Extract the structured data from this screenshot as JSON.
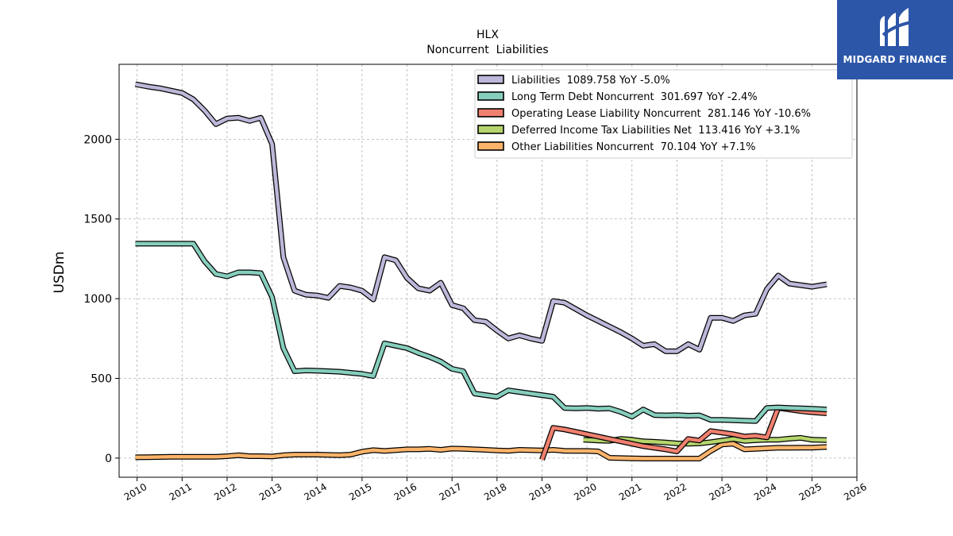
{
  "logo": {
    "text": "MIDGARD FINANCE",
    "background": "#2c56a8"
  },
  "chart_data": {
    "type": "line",
    "title": "HLX",
    "subtitle": "Noncurrent  Liabilities",
    "ylabel": "USDm",
    "xlabel": "",
    "xlim": [
      2009.6,
      2026.0
    ],
    "ylim": [
      -120,
      2470
    ],
    "xticks": [
      2010,
      2011,
      2012,
      2013,
      2014,
      2015,
      2016,
      2017,
      2018,
      2019,
      2020,
      2021,
      2022,
      2023,
      2024,
      2025,
      2026
    ],
    "yticks": [
      0,
      500,
      1000,
      1500,
      2000
    ],
    "grid": true,
    "legend_position": "top-right",
    "series": [
      {
        "name": "Liabilities  1089.758 YoY -5.0%",
        "color": "#bcb8d9",
        "points": [
          [
            2009.96,
            2345
          ],
          [
            2010.25,
            2330
          ],
          [
            2010.5,
            2320
          ],
          [
            2010.75,
            2305
          ],
          [
            2011.0,
            2290
          ],
          [
            2011.25,
            2250
          ],
          [
            2011.5,
            2180
          ],
          [
            2011.75,
            2095
          ],
          [
            2012.0,
            2130
          ],
          [
            2012.25,
            2135
          ],
          [
            2012.5,
            2115
          ],
          [
            2012.75,
            2135
          ],
          [
            2013.0,
            1970
          ],
          [
            2013.25,
            1260
          ],
          [
            2013.5,
            1050
          ],
          [
            2013.75,
            1025
          ],
          [
            2014.0,
            1020
          ],
          [
            2014.25,
            1005
          ],
          [
            2014.5,
            1080
          ],
          [
            2014.75,
            1070
          ],
          [
            2015.0,
            1050
          ],
          [
            2015.25,
            995
          ],
          [
            2015.5,
            1260
          ],
          [
            2015.75,
            1240
          ],
          [
            2016.0,
            1130
          ],
          [
            2016.25,
            1065
          ],
          [
            2016.5,
            1050
          ],
          [
            2016.75,
            1100
          ],
          [
            2017.0,
            960
          ],
          [
            2017.25,
            940
          ],
          [
            2017.5,
            865
          ],
          [
            2017.75,
            855
          ],
          [
            2018.0,
            800
          ],
          [
            2018.25,
            750
          ],
          [
            2018.5,
            770
          ],
          [
            2018.75,
            750
          ],
          [
            2019.0,
            735
          ],
          [
            2019.25,
            985
          ],
          [
            2019.5,
            975
          ],
          [
            2019.75,
            935
          ],
          [
            2020.0,
            895
          ],
          [
            2020.25,
            860
          ],
          [
            2020.5,
            825
          ],
          [
            2020.75,
            790
          ],
          [
            2021.0,
            750
          ],
          [
            2021.25,
            705
          ],
          [
            2021.5,
            715
          ],
          [
            2021.75,
            670
          ],
          [
            2022.0,
            670
          ],
          [
            2022.25,
            715
          ],
          [
            2022.5,
            680
          ],
          [
            2022.75,
            880
          ],
          [
            2023.0,
            880
          ],
          [
            2023.25,
            860
          ],
          [
            2023.5,
            895
          ],
          [
            2023.75,
            905
          ],
          [
            2024.0,
            1060
          ],
          [
            2024.25,
            1145
          ],
          [
            2024.5,
            1095
          ],
          [
            2024.75,
            1085
          ],
          [
            2025.0,
            1075
          ],
          [
            2025.33,
            1090
          ]
        ]
      },
      {
        "name": "Long Term Debt Noncurrent  301.697 YoY -2.4%",
        "color": "#86cebd",
        "points": [
          [
            2009.96,
            1345
          ],
          [
            2010.25,
            1345
          ],
          [
            2010.5,
            1345
          ],
          [
            2010.75,
            1345
          ],
          [
            2011.0,
            1345
          ],
          [
            2011.25,
            1345
          ],
          [
            2011.5,
            1235
          ],
          [
            2011.75,
            1155
          ],
          [
            2012.0,
            1140
          ],
          [
            2012.25,
            1165
          ],
          [
            2012.5,
            1165
          ],
          [
            2012.75,
            1160
          ],
          [
            2013.0,
            1010
          ],
          [
            2013.25,
            690
          ],
          [
            2013.5,
            545
          ],
          [
            2013.75,
            550
          ],
          [
            2014.0,
            548
          ],
          [
            2014.25,
            545
          ],
          [
            2014.5,
            542
          ],
          [
            2014.75,
            535
          ],
          [
            2015.0,
            528
          ],
          [
            2015.25,
            515
          ],
          [
            2015.5,
            720
          ],
          [
            2015.75,
            705
          ],
          [
            2016.0,
            690
          ],
          [
            2016.25,
            660
          ],
          [
            2016.5,
            635
          ],
          [
            2016.75,
            605
          ],
          [
            2017.0,
            560
          ],
          [
            2017.25,
            545
          ],
          [
            2017.5,
            405
          ],
          [
            2017.75,
            395
          ],
          [
            2018.0,
            385
          ],
          [
            2018.25,
            425
          ],
          [
            2018.5,
            415
          ],
          [
            2018.75,
            405
          ],
          [
            2019.0,
            395
          ],
          [
            2019.25,
            385
          ],
          [
            2019.5,
            315
          ],
          [
            2019.75,
            312
          ],
          [
            2020.0,
            315
          ],
          [
            2020.25,
            310
          ],
          [
            2020.5,
            312
          ],
          [
            2020.75,
            290
          ],
          [
            2021.0,
            260
          ],
          [
            2021.25,
            305
          ],
          [
            2021.5,
            270
          ],
          [
            2021.75,
            268
          ],
          [
            2022.0,
            270
          ],
          [
            2022.25,
            266
          ],
          [
            2022.5,
            268
          ],
          [
            2022.75,
            240
          ],
          [
            2023.0,
            240
          ],
          [
            2023.25,
            237
          ],
          [
            2023.5,
            235
          ],
          [
            2023.75,
            232
          ],
          [
            2024.0,
            315
          ],
          [
            2024.25,
            318
          ],
          [
            2024.5,
            315
          ],
          [
            2024.75,
            312
          ],
          [
            2025.0,
            310
          ],
          [
            2025.33,
            305
          ]
        ]
      },
      {
        "name": "Operating Lease Liability Noncurrent  281.146 YoY -10.6%",
        "color": "#f0806f",
        "points": [
          [
            2019.0,
            -10
          ],
          [
            2019.25,
            190
          ],
          [
            2019.5,
            180
          ],
          [
            2019.75,
            165
          ],
          [
            2020.0,
            150
          ],
          [
            2020.25,
            135
          ],
          [
            2020.5,
            120
          ],
          [
            2020.75,
            105
          ],
          [
            2021.0,
            90
          ],
          [
            2021.25,
            75
          ],
          [
            2021.5,
            65
          ],
          [
            2021.75,
            55
          ],
          [
            2022.0,
            42
          ],
          [
            2022.25,
            120
          ],
          [
            2022.5,
            110
          ],
          [
            2022.75,
            170
          ],
          [
            2023.0,
            160
          ],
          [
            2023.25,
            150
          ],
          [
            2023.5,
            135
          ],
          [
            2023.75,
            140
          ],
          [
            2024.0,
            130
          ],
          [
            2024.25,
            315
          ],
          [
            2024.5,
            305
          ],
          [
            2024.75,
            295
          ],
          [
            2025.0,
            288
          ],
          [
            2025.33,
            281
          ]
        ]
      },
      {
        "name": "Deferred Income Tax Liabilities Net  113.416 YoY +3.1%",
        "color": "#b5d56c",
        "points": [
          [
            2019.92,
            115
          ],
          [
            2020.25,
            110
          ],
          [
            2020.5,
            108
          ],
          [
            2020.75,
            120
          ],
          [
            2021.0,
            115
          ],
          [
            2021.25,
            105
          ],
          [
            2021.5,
            102
          ],
          [
            2021.75,
            98
          ],
          [
            2022.0,
            92
          ],
          [
            2022.25,
            90
          ],
          [
            2022.5,
            92
          ],
          [
            2022.75,
            100
          ],
          [
            2023.0,
            110
          ],
          [
            2023.25,
            120
          ],
          [
            2023.5,
            108
          ],
          [
            2023.75,
            112
          ],
          [
            2024.0,
            115
          ],
          [
            2024.25,
            115
          ],
          [
            2024.5,
            122
          ],
          [
            2024.75,
            127
          ],
          [
            2025.0,
            115
          ],
          [
            2025.33,
            113
          ]
        ]
      },
      {
        "name": "Other Liabilities Noncurrent  70.104 YoY +7.1%",
        "color": "#fdb46a",
        "points": [
          [
            2009.96,
            5
          ],
          [
            2010.25,
            6
          ],
          [
            2010.5,
            7
          ],
          [
            2010.75,
            8
          ],
          [
            2011.0,
            8
          ],
          [
            2011.25,
            8
          ],
          [
            2011.5,
            8
          ],
          [
            2011.75,
            8
          ],
          [
            2012.0,
            12
          ],
          [
            2012.25,
            18
          ],
          [
            2012.5,
            12
          ],
          [
            2012.75,
            12
          ],
          [
            2013.0,
            10
          ],
          [
            2013.25,
            18
          ],
          [
            2013.5,
            22
          ],
          [
            2013.75,
            22
          ],
          [
            2014.0,
            22
          ],
          [
            2014.25,
            20
          ],
          [
            2014.5,
            18
          ],
          [
            2014.75,
            22
          ],
          [
            2015.0,
            40
          ],
          [
            2015.25,
            50
          ],
          [
            2015.5,
            45
          ],
          [
            2015.75,
            50
          ],
          [
            2016.0,
            55
          ],
          [
            2016.25,
            55
          ],
          [
            2016.5,
            58
          ],
          [
            2016.75,
            52
          ],
          [
            2017.0,
            60
          ],
          [
            2017.25,
            58
          ],
          [
            2017.5,
            55
          ],
          [
            2017.75,
            52
          ],
          [
            2018.0,
            48
          ],
          [
            2018.25,
            46
          ],
          [
            2018.5,
            52
          ],
          [
            2018.75,
            50
          ],
          [
            2019.0,
            48
          ],
          [
            2019.25,
            52
          ],
          [
            2019.5,
            46
          ],
          [
            2019.75,
            45
          ],
          [
            2020.0,
            45
          ],
          [
            2020.25,
            42
          ],
          [
            2020.5,
            2
          ],
          [
            2020.75,
            0
          ],
          [
            2021.0,
            -2
          ],
          [
            2021.25,
            -3
          ],
          [
            2021.5,
            -3
          ],
          [
            2021.75,
            -3
          ],
          [
            2022.0,
            -3
          ],
          [
            2022.25,
            -3
          ],
          [
            2022.5,
            -3
          ],
          [
            2022.75,
            45
          ],
          [
            2023.0,
            85
          ],
          [
            2023.25,
            90
          ],
          [
            2023.5,
            55
          ],
          [
            2023.75,
            58
          ],
          [
            2024.0,
            62
          ],
          [
            2024.25,
            65
          ],
          [
            2024.5,
            65
          ],
          [
            2024.75,
            66
          ],
          [
            2025.0,
            66
          ],
          [
            2025.33,
            70
          ]
        ]
      }
    ]
  }
}
